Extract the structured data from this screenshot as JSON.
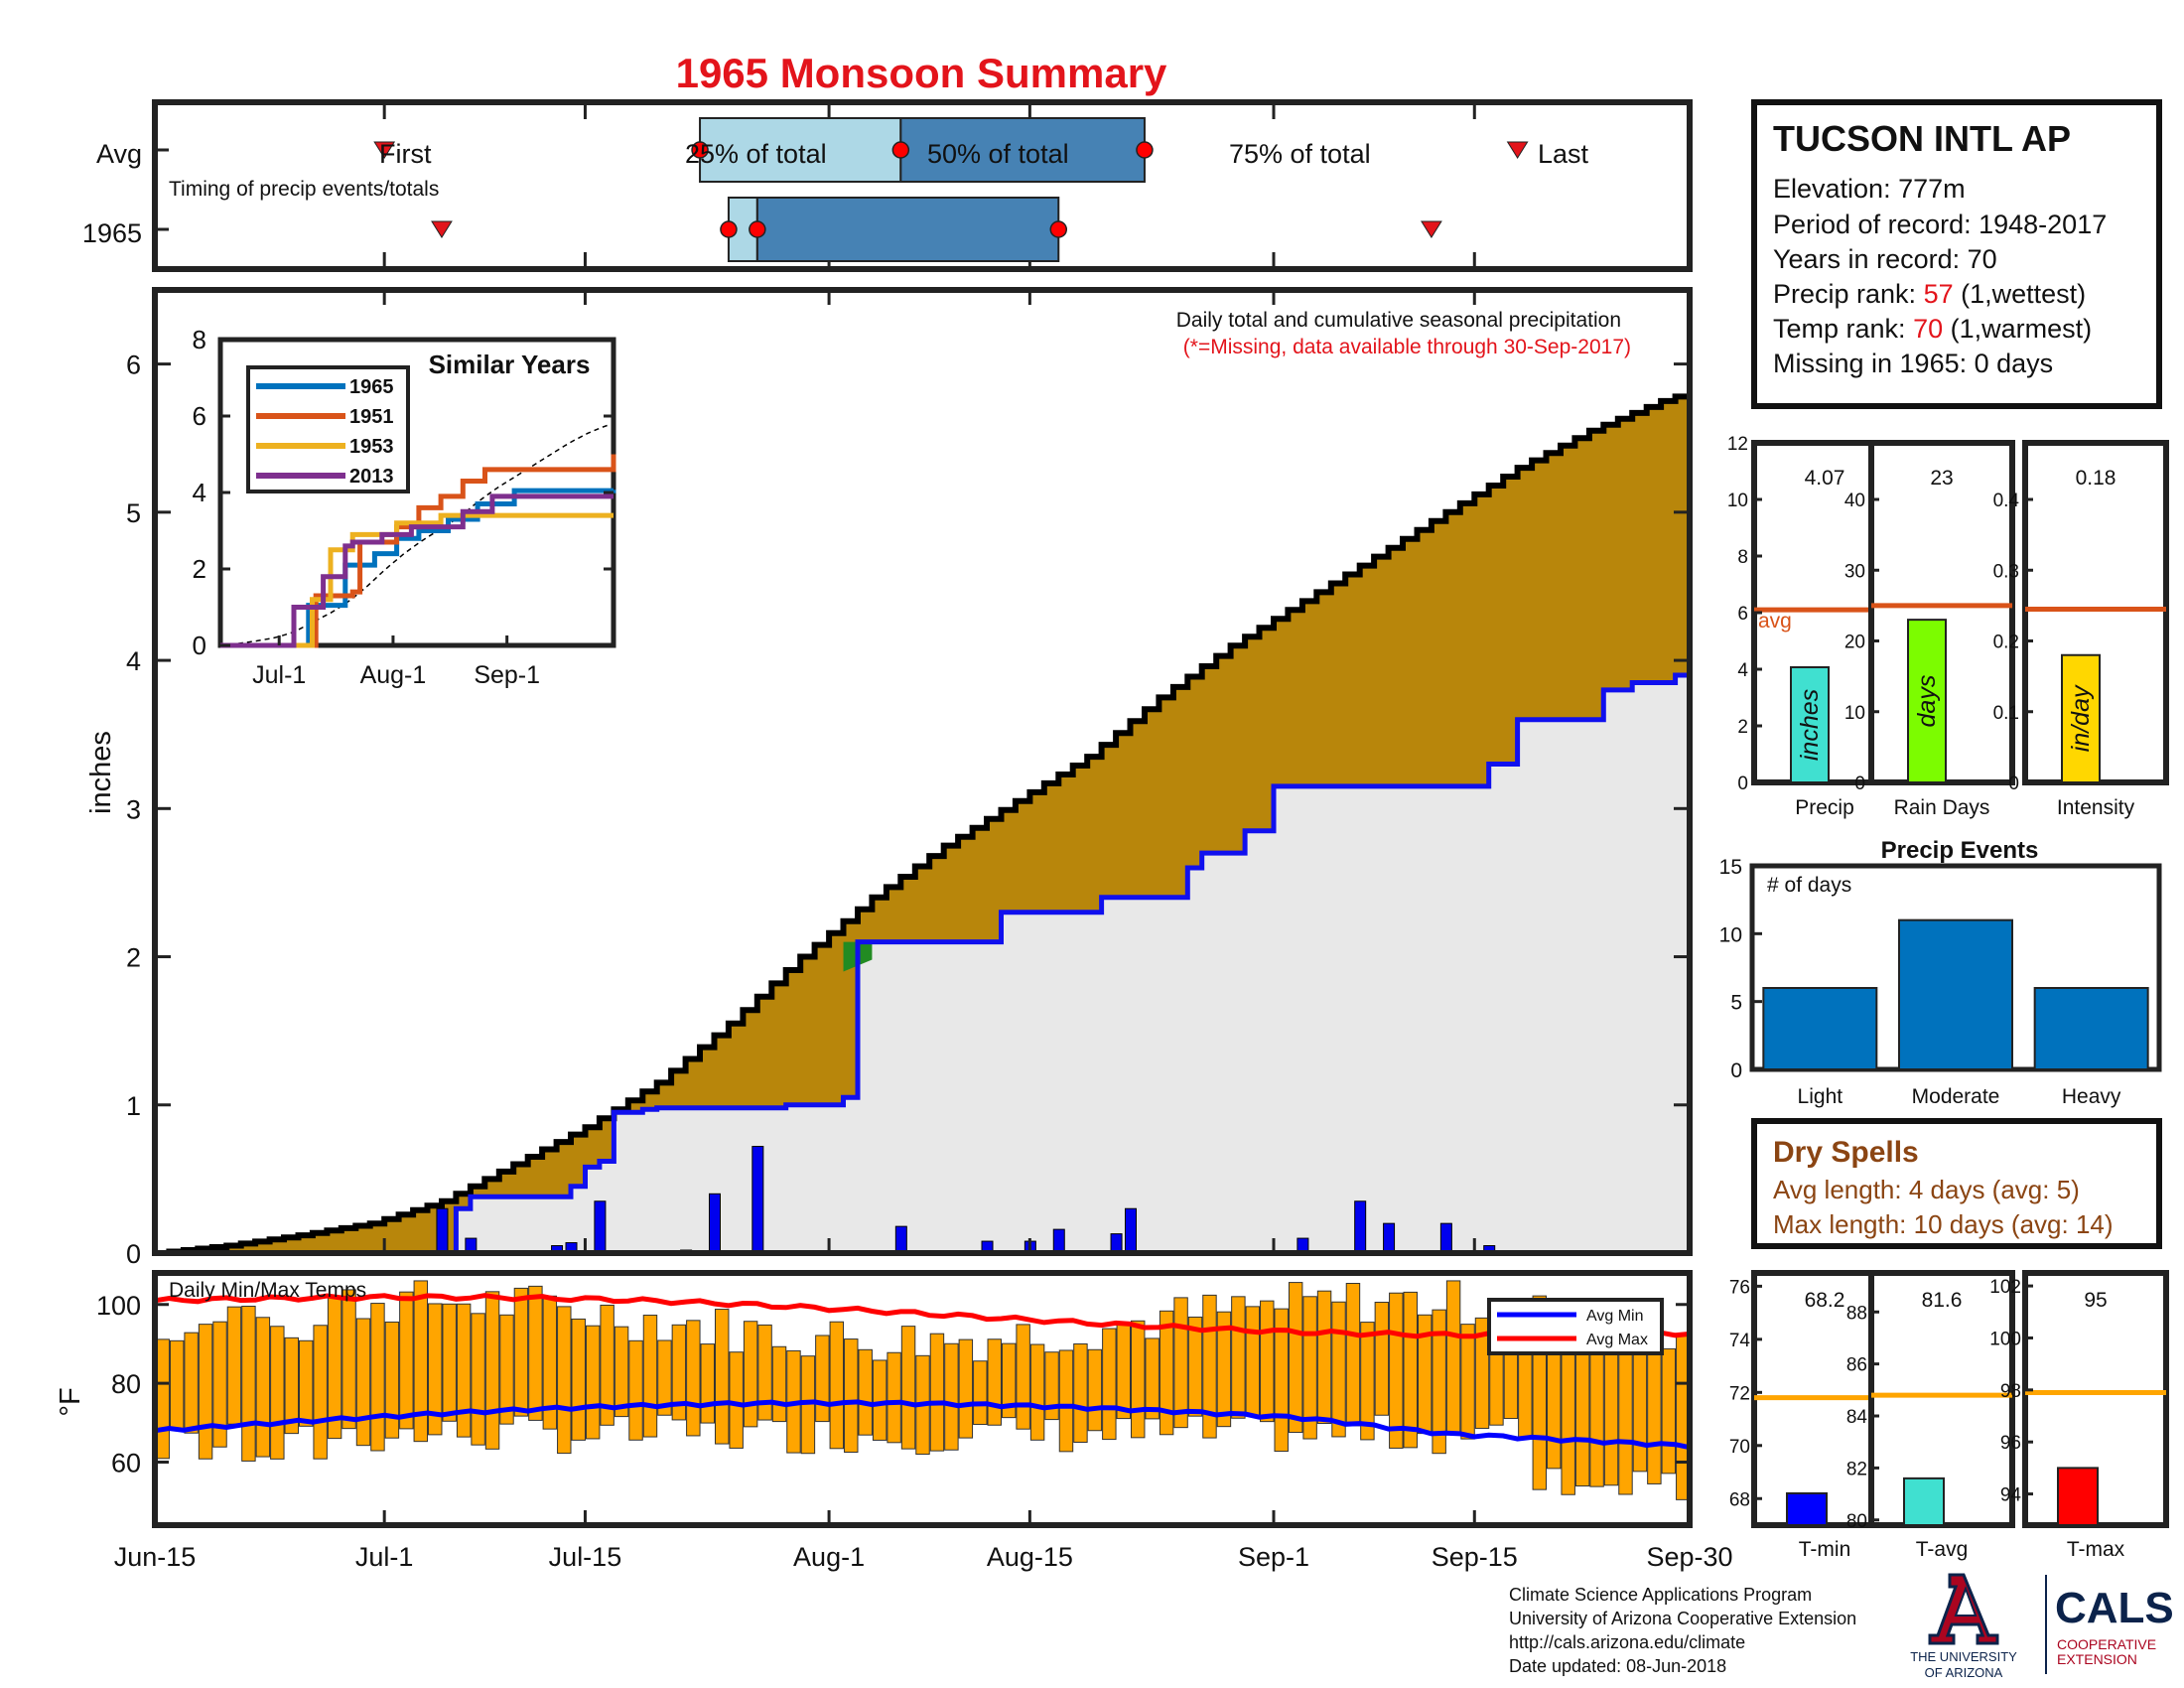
{
  "title": "1965 Monsoon Summary",
  "timing": {
    "row_avg": "Avg",
    "row_year": "1965",
    "caption": "Timing of precip events/totals",
    "first_label": "First",
    "last_label": "Last",
    "p25_label": "25% of total",
    "p50_label": "50% of total",
    "p75_label": "75% of total",
    "avg": {
      "first": "Jul-1",
      "p25": "Jul-23",
      "p50": "Aug-6",
      "p75": "Aug-23",
      "last": "Sep-18"
    },
    "year": {
      "first": "Jul-5",
      "p25": "Jul-25",
      "p50": "Jul-27",
      "p75": "Aug-17",
      "last": "Sep-12"
    }
  },
  "station": {
    "name": "TUCSON INTL AP",
    "elevation": "Elevation: 777m",
    "period": "Period of record: 1948-2017",
    "years": "Years in record: 70",
    "precip_rank_label": "Precip rank: ",
    "precip_rank_value": "57",
    "precip_rank_note": " (1,wettest)",
    "temp_rank_label": "Temp rank: ",
    "temp_rank_value": "70",
    "temp_rank_note": " (1,warmest)",
    "missing": "Missing in 1965: 0 days"
  },
  "main": {
    "ylabel": "inches",
    "note1": "Daily total and cumulative seasonal precipitation",
    "note2": "(*=Missing, data available through 30-Sep-2017)",
    "x_ticks": [
      "Jun-15",
      "Jul-1",
      "Jul-15",
      "Aug-1",
      "Aug-15",
      "Sep-1",
      "Sep-15",
      "Sep-30"
    ],
    "y_ticks": [
      "0",
      "1",
      "2",
      "3",
      "4",
      "5",
      "6"
    ]
  },
  "inset": {
    "title": "Similar Years",
    "legend": [
      "1965",
      "1951",
      "1953",
      "2013"
    ],
    "y_ticks": [
      "0",
      "2",
      "4",
      "6",
      "8"
    ],
    "x_ticks": [
      "Jul-1",
      "Aug-1",
      "Sep-1"
    ]
  },
  "temps": {
    "label": "Daily Min/Max Temps",
    "ylabel": "°F",
    "y_ticks": [
      "60",
      "80",
      "100"
    ],
    "legend_min": "Avg Min",
    "legend_max": "Avg Max"
  },
  "bar_panels": {
    "precip": {
      "value": "4.07",
      "unit": "inches",
      "label": "Precip",
      "avg": "avg",
      "ticks": [
        "0",
        "2",
        "4",
        "6",
        "8",
        "10",
        "12"
      ]
    },
    "raindays": {
      "value": "23",
      "unit": "days",
      "label": "Rain Days",
      "ticks": [
        "0",
        "10",
        "20",
        "30",
        "40"
      ]
    },
    "intensity": {
      "value": "0.18",
      "unit": "in/day",
      "label": "Intensity",
      "ticks": [
        "0",
        "0.1",
        "0.2",
        "0.3",
        "0.4"
      ]
    }
  },
  "events": {
    "title": "Precip Events",
    "ylabel": "# of days",
    "ticks": [
      "0",
      "5",
      "10",
      "15"
    ],
    "categories": [
      "Light",
      "Moderate",
      "Heavy"
    ]
  },
  "dry_spells": {
    "title": "Dry Spells",
    "avg_length": "Avg length: 4 days (avg: 5)",
    "max_length": "Max length: 10 days (avg: 14)"
  },
  "temp_panels": {
    "tmin": {
      "value": "68.2",
      "label": "T-min",
      "ticks": [
        "68",
        "70",
        "72",
        "74",
        "76"
      ]
    },
    "tavg": {
      "value": "81.6",
      "label": "T-avg",
      "ticks": [
        "80",
        "82",
        "84",
        "86",
        "88"
      ]
    },
    "tmax": {
      "value": "95",
      "label": "T-max",
      "ticks": [
        "94",
        "96",
        "98",
        "100",
        "102"
      ]
    }
  },
  "footer": {
    "line1": "Climate Science Applications Program",
    "line2": "University of Arizona Cooperative Extension",
    "line3": "http://cals.arizona.edu/climate",
    "line4": " Date updated: 08-Jun-2018",
    "ua_line1": "THE UNIVERSITY",
    "ua_line2": "OF ARIZONA",
    "cals": "CALS",
    "cals_sub1": "COOPERATIVE",
    "cals_sub2": "EXTENSION"
  },
  "chart_data": [
    {
      "type": "line",
      "name": "Cumulative seasonal precipitation",
      "x_range": [
        "Jun-15",
        "Sep-30"
      ],
      "ylim": [
        0,
        6.5
      ],
      "ylabel": "inches",
      "series": [
        {
          "name": "1965",
          "x_day": [
            0,
            20,
            21,
            22,
            29,
            30,
            31,
            32,
            34,
            35,
            44,
            48,
            49,
            56,
            57,
            58,
            59,
            61,
            66,
            67,
            72,
            73,
            76,
            78,
            81,
            82,
            93,
            95,
            100,
            101,
            103,
            106,
            107,
            108,
            109,
            112,
            117
          ],
          "values": [
            0,
            0,
            0.3,
            0.38,
            0.45,
            0.58,
            0.62,
            0.95,
            0.97,
            0.98,
            1.0,
            1.05,
            2.1,
            2.1,
            2.1,
            2.1,
            2.3,
            2.3,
            2.4,
            2.4,
            2.6,
            2.7,
            2.85,
            3.15,
            3.15,
            3.15,
            3.3,
            3.6,
            3.6,
            3.8,
            3.85,
            3.9,
            4.0,
            4.05,
            4.05,
            4.07,
            4.07
          ]
        },
        {
          "name": "Average",
          "x_day": [
            0,
            5,
            10,
            15,
            20,
            25,
            30,
            35,
            40,
            45,
            50,
            55,
            60,
            65,
            70,
            75,
            80,
            85,
            90,
            95,
            100,
            105,
            110,
            117
          ],
          "values": [
            0,
            0.05,
            0.12,
            0.2,
            0.35,
            0.6,
            0.85,
            1.15,
            1.55,
            2.0,
            2.4,
            2.75,
            3.05,
            3.35,
            3.75,
            4.1,
            4.4,
            4.7,
            5.0,
            5.3,
            5.55,
            5.75,
            5.9,
            6.1
          ]
        }
      ],
      "daily_precip": [
        {
          "x_day": 20,
          "value": 0.3
        },
        {
          "x_day": 22,
          "value": 0.1
        },
        {
          "x_day": 28,
          "value": 0.05
        },
        {
          "x_day": 29,
          "value": 0.07
        },
        {
          "x_day": 31,
          "value": 0.35
        },
        {
          "x_day": 37,
          "value": 0.02
        },
        {
          "x_day": 39,
          "value": 0.4
        },
        {
          "x_day": 42,
          "value": 0.72
        },
        {
          "x_day": 52,
          "value": 0.18
        },
        {
          "x_day": 58,
          "value": 0.08
        },
        {
          "x_day": 61,
          "value": 0.08
        },
        {
          "x_day": 63,
          "value": 0.16
        },
        {
          "x_day": 67,
          "value": 0.13
        },
        {
          "x_day": 68,
          "value": 0.3
        },
        {
          "x_day": 80,
          "value": 0.1
        },
        {
          "x_day": 84,
          "value": 0.35
        },
        {
          "x_day": 86,
          "value": 0.2
        },
        {
          "x_day": 90,
          "value": 0.2
        },
        {
          "x_day": 93,
          "value": 0.05
        }
      ]
    },
    {
      "type": "line",
      "name": "Similar Years",
      "ylim": [
        0,
        8
      ],
      "series": [
        {
          "name": "1965",
          "color": "#0072bd",
          "values": [
            [
              0,
              0
            ],
            [
              20,
              0
            ],
            [
              24,
              1.05
            ],
            [
              32,
              1.05
            ],
            [
              34,
              2.1
            ],
            [
              42,
              2.4
            ],
            [
              48,
              2.8
            ],
            [
              54,
              3.0
            ],
            [
              62,
              3.3
            ],
            [
              70,
              3.7
            ],
            [
              80,
              4.05
            ],
            [
              107,
              4.07
            ]
          ]
        },
        {
          "name": "1951",
          "color": "#d95319",
          "values": [
            [
              0,
              0
            ],
            [
              24,
              0
            ],
            [
              26,
              1.3
            ],
            [
              36,
              1.4
            ],
            [
              38,
              2.7
            ],
            [
              48,
              3.1
            ],
            [
              54,
              3.6
            ],
            [
              60,
              3.9
            ],
            [
              66,
              4.3
            ],
            [
              72,
              4.6
            ],
            [
              85,
              4.6
            ],
            [
              98,
              4.6
            ],
            [
              104,
              4.6
            ],
            [
              107,
              5.0
            ]
          ]
        },
        {
          "name": "1953",
          "color": "#edb120",
          "values": [
            [
              0,
              0
            ],
            [
              22,
              0
            ],
            [
              25,
              1.2
            ],
            [
              30,
              2.5
            ],
            [
              36,
              2.9
            ],
            [
              48,
              3.2
            ],
            [
              60,
              3.4
            ],
            [
              70,
              3.4
            ],
            [
              75,
              3.4
            ],
            [
              107,
              3.4
            ]
          ]
        },
        {
          "name": "2013",
          "color": "#7e2f8e",
          "values": [
            [
              0,
              0
            ],
            [
              18,
              0
            ],
            [
              20,
              1.0
            ],
            [
              28,
              1.8
            ],
            [
              34,
              2.6
            ],
            [
              36,
              2.7
            ],
            [
              44,
              2.9
            ],
            [
              52,
              3.1
            ],
            [
              66,
              3.5
            ],
            [
              74,
              3.9
            ],
            [
              90,
              3.9
            ],
            [
              107,
              3.9
            ]
          ]
        }
      ],
      "x_ticks": [
        "Jul-1",
        "Aug-1",
        "Sep-1"
      ]
    },
    {
      "type": "bar",
      "name": "Daily Min/Max Temps",
      "ylim": [
        44,
        108
      ],
      "avg_min_range": [
        68,
        75
      ],
      "avg_max_range": [
        93,
        103
      ]
    },
    {
      "type": "bar",
      "name": "Season totals",
      "series": [
        {
          "name": "Precip",
          "value": 4.07,
          "avg": 6.1,
          "ylim": [
            0,
            12
          ],
          "color": "#40e0d0"
        },
        {
          "name": "Rain Days",
          "value": 23,
          "avg": 25,
          "ylim": [
            0,
            48
          ],
          "color": "#7cfc00"
        },
        {
          "name": "Intensity",
          "value": 0.18,
          "avg": 0.245,
          "ylim": [
            0,
            0.48
          ],
          "color": "#ffd700"
        }
      ]
    },
    {
      "type": "bar",
      "name": "Precip Events",
      "categories": [
        "Light",
        "Moderate",
        "Heavy"
      ],
      "values": [
        6,
        11,
        6
      ],
      "ylim": [
        0,
        15
      ]
    },
    {
      "type": "bar",
      "name": "Temperature summary",
      "series": [
        {
          "name": "T-min",
          "value": 68.2,
          "avg": 71.8,
          "ylim": [
            67,
            76.5
          ],
          "color": "#0000ff"
        },
        {
          "name": "T-avg",
          "value": 81.6,
          "avg": 84.8,
          "ylim": [
            79.8,
            89.5
          ],
          "color": "#40e0d0"
        },
        {
          "name": "T-max",
          "value": 95,
          "avg": 97.9,
          "ylim": [
            92.8,
            102.5
          ],
          "color": "#ff0000"
        }
      ]
    }
  ]
}
